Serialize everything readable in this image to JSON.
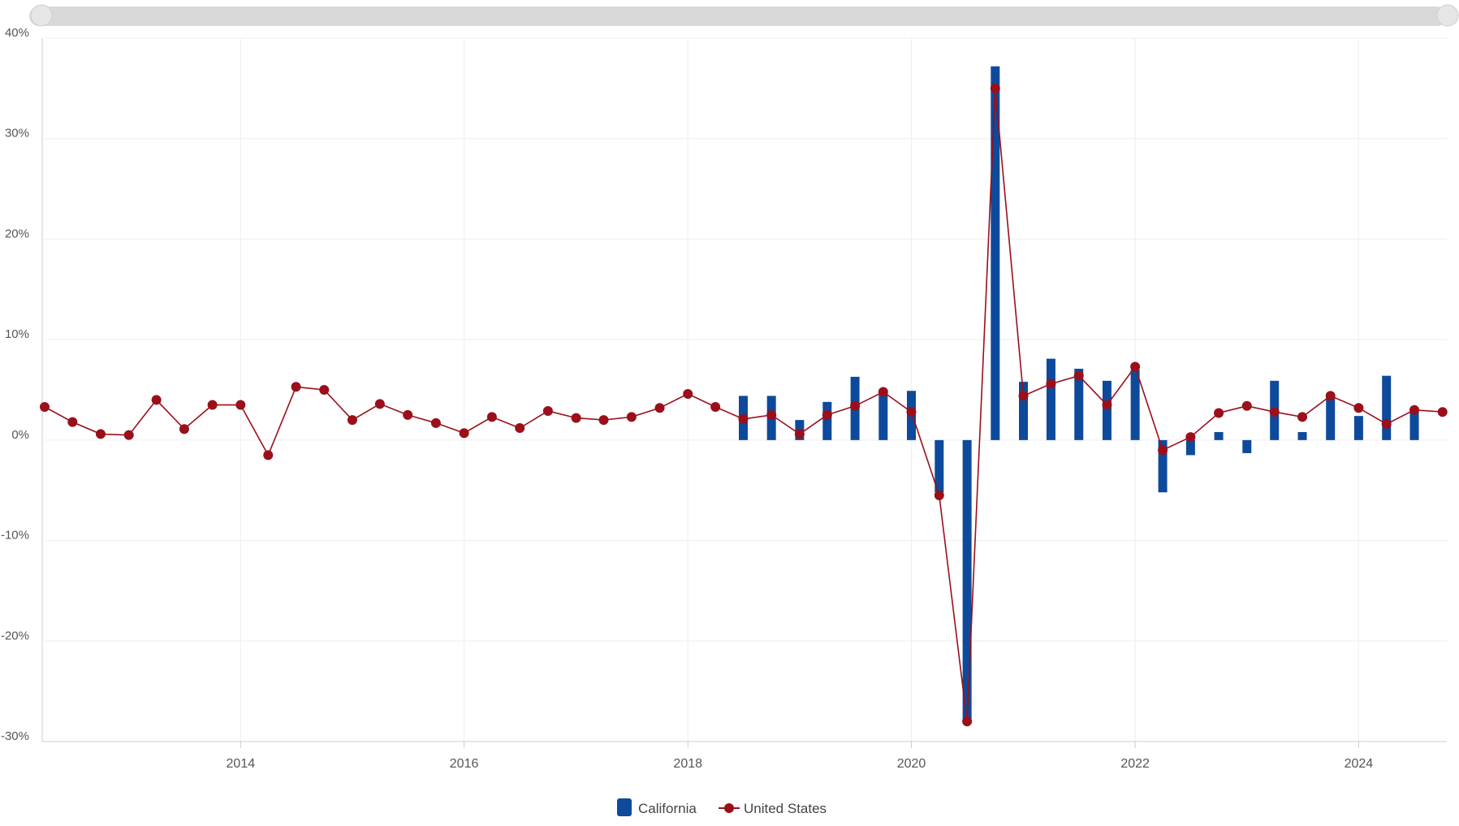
{
  "colors": {
    "california": "#0d4a9c",
    "united_states": "#9b0f1a",
    "grid": "#eeeeee",
    "axis": "#cccccc",
    "scrollbar": "#d9d9d9"
  },
  "chart_data": {
    "type": "bar",
    "x_axis_type": "time",
    "xlim": [
      "2012-04-01",
      "2024-10-15"
    ],
    "x_ticks": [
      "2014",
      "2016",
      "2018",
      "2020",
      "2022",
      "2024"
    ],
    "ylim": [
      -0.3,
      0.4
    ],
    "y_ticks": [
      "40%",
      "30%",
      "20%",
      "10%",
      "0%",
      "-10%",
      "-20%",
      "-30%"
    ],
    "y_tick_values": [
      0.4,
      0.3,
      0.2,
      0.1,
      0.0,
      -0.1,
      -0.2,
      -0.3
    ],
    "grid": true,
    "legend_position": "bottom",
    "series": [
      {
        "name": "California",
        "type": "bar",
        "x": [
          "2018-07-01",
          "2018-10-01",
          "2019-01-01",
          "2019-04-01",
          "2019-07-01",
          "2019-10-01",
          "2020-01-01",
          "2020-04-01",
          "2020-07-01",
          "2020-10-01",
          "2021-01-01",
          "2021-04-01",
          "2021-07-01",
          "2021-10-01",
          "2022-01-01",
          "2022-04-01",
          "2022-07-01",
          "2022-10-01",
          "2023-01-01",
          "2023-04-01",
          "2023-07-01",
          "2023-10-01",
          "2024-01-01",
          "2024-04-01",
          "2024-07-01"
        ],
        "values": [
          0.044,
          0.044,
          0.02,
          0.038,
          0.063,
          0.046,
          0.049,
          -0.052,
          -0.282,
          0.372,
          0.058,
          0.081,
          0.071,
          0.059,
          0.07,
          -0.052,
          -0.015,
          0.008,
          -0.013,
          0.059,
          0.008,
          0.044,
          0.024,
          0.064,
          0.032
        ]
      },
      {
        "name": "United States",
        "type": "line",
        "x": [
          "2012-04-01",
          "2012-07-01",
          "2012-10-01",
          "2013-01-01",
          "2013-04-01",
          "2013-07-01",
          "2013-10-01",
          "2014-01-01",
          "2014-04-01",
          "2014-07-01",
          "2014-10-01",
          "2015-01-01",
          "2015-04-01",
          "2015-07-01",
          "2015-10-01",
          "2016-01-01",
          "2016-04-01",
          "2016-07-01",
          "2016-10-01",
          "2017-01-01",
          "2017-04-01",
          "2017-07-01",
          "2017-10-01",
          "2018-01-01",
          "2018-04-01",
          "2018-07-01",
          "2018-10-01",
          "2019-01-01",
          "2019-04-01",
          "2019-07-01",
          "2019-10-01",
          "2020-01-01",
          "2020-04-01",
          "2020-07-01",
          "2020-10-01",
          "2021-01-01",
          "2021-04-01",
          "2021-07-01",
          "2021-10-01",
          "2022-01-01",
          "2022-04-01",
          "2022-07-01",
          "2022-10-01",
          "2023-01-01",
          "2023-04-01",
          "2023-07-01",
          "2023-10-01",
          "2024-01-01",
          "2024-04-01",
          "2024-07-01",
          "2024-10-01"
        ],
        "values": [
          0.033,
          0.018,
          0.006,
          0.005,
          0.04,
          0.011,
          0.035,
          0.035,
          -0.015,
          0.053,
          0.05,
          0.02,
          0.036,
          0.025,
          0.017,
          0.007,
          0.023,
          0.012,
          0.029,
          0.022,
          0.02,
          0.023,
          0.032,
          0.046,
          0.033,
          0.021,
          0.025,
          0.006,
          0.025,
          0.034,
          0.048,
          0.028,
          -0.055,
          -0.28,
          0.35,
          0.044,
          0.056,
          0.064,
          0.035,
          0.073,
          -0.01,
          0.003,
          0.027,
          0.034,
          0.028,
          0.023,
          0.044,
          0.032,
          0.016,
          0.03,
          0.028
        ]
      }
    ]
  }
}
